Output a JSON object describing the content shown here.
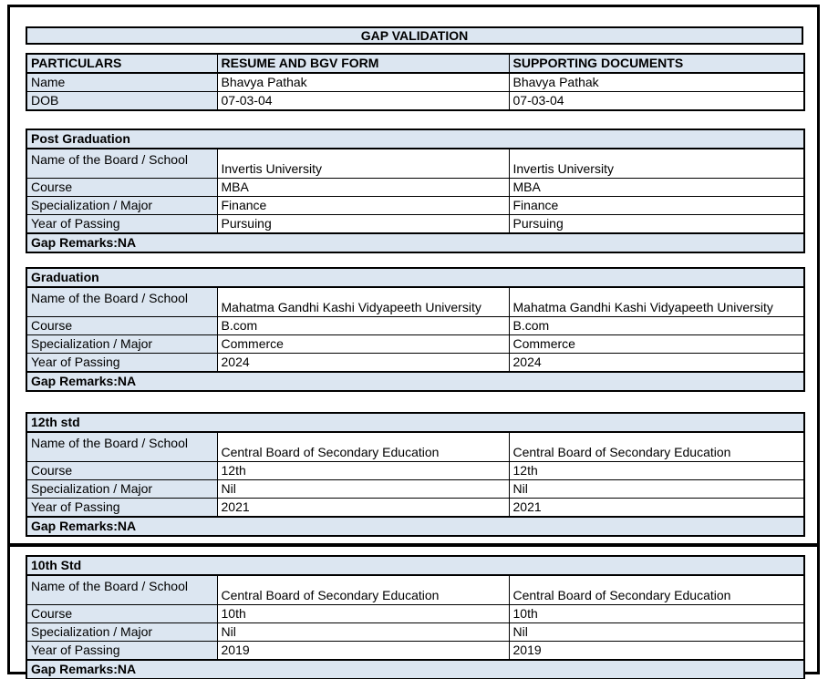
{
  "page": {
    "title": "GAP VALIDATION"
  },
  "colors": {
    "accent_cell": "#dce6f1",
    "border": "#000000",
    "background": "#ffffff"
  },
  "table_headers": [
    "PARTICULARS",
    "RESUME AND BGV FORM",
    "SUPPORTING DOCUMENTS"
  ],
  "particulars": [
    {
      "label": "Name",
      "resume": "Bhavya Pathak",
      "supporting": "Bhavya Pathak"
    },
    {
      "label": "DOB",
      "resume": "07-03-04",
      "supporting": "07-03-04"
    }
  ],
  "sections": [
    {
      "heading": "Post Graduation",
      "rows": [
        {
          "label": "Name of the Board / School",
          "resume": "Invertis University",
          "supporting": "Invertis University"
        },
        {
          "label": "Course",
          "resume": "MBA",
          "supporting": "MBA"
        },
        {
          "label": "Specialization / Major",
          "resume": "Finance",
          "supporting": "Finance"
        },
        {
          "label": "Year of Passing",
          "resume": "Pursuing",
          "supporting": "Pursuing"
        }
      ],
      "gap_remarks": "Gap Remarks:NA"
    },
    {
      "heading": "Graduation",
      "rows": [
        {
          "label": "Name of the Board / School",
          "resume": "Mahatma Gandhi Kashi Vidyapeeth University",
          "supporting": "Mahatma Gandhi Kashi Vidyapeeth University"
        },
        {
          "label": "Course",
          "resume": "B.com",
          "supporting": "B.com"
        },
        {
          "label": "Specialization / Major",
          "resume": "Commerce",
          "supporting": "Commerce"
        },
        {
          "label": "Year of Passing",
          "resume": "2024",
          "supporting": "2024"
        }
      ],
      "gap_remarks": "Gap Remarks:NA"
    },
    {
      "heading": "12th std",
      "rows": [
        {
          "label": "Name of the Board / School",
          "resume": "Central Board of Secondary Education",
          "supporting": "Central Board of Secondary Education"
        },
        {
          "label": "Course",
          "resume": "12th",
          "supporting": "12th"
        },
        {
          "label": "Specialization / Major",
          "resume": "Nil",
          "supporting": "Nil"
        },
        {
          "label": "Year of Passing",
          "resume": "2021",
          "supporting": "2021"
        }
      ],
      "gap_remarks": "Gap Remarks:NA"
    },
    {
      "heading": "10th Std",
      "rows": [
        {
          "label": "Name of the Board / School",
          "resume": "Central Board of Secondary Education",
          "supporting": "Central Board of Secondary Education"
        },
        {
          "label": "Course",
          "resume": "10th",
          "supporting": "10th"
        },
        {
          "label": "Specialization / Major",
          "resume": "Nil",
          "supporting": "Nil"
        },
        {
          "label": "Year of Passing",
          "resume": "2019",
          "supporting": "2019"
        }
      ],
      "gap_remarks": "Gap Remarks:NA"
    }
  ]
}
